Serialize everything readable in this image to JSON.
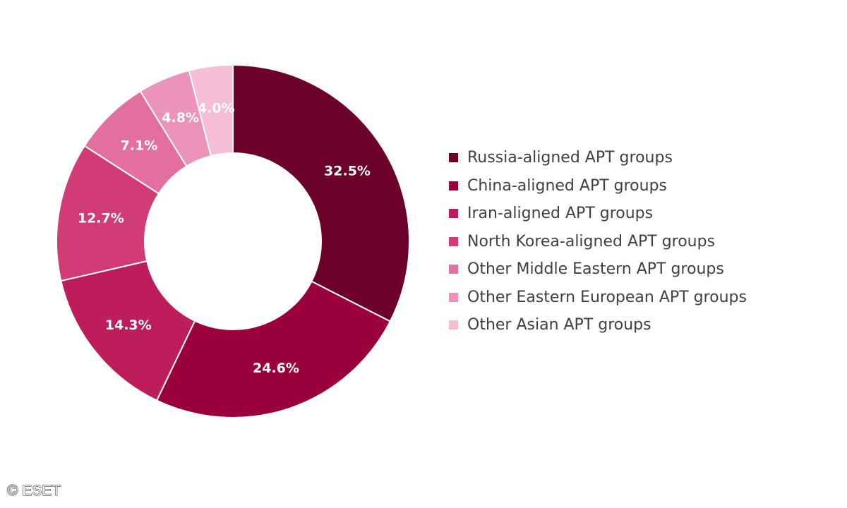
{
  "chart_data": {
    "type": "pie",
    "donut": true,
    "categories": [
      "Russia-aligned APT groups",
      "China-aligned APT groups",
      "Iran-aligned APT groups",
      "North Korea-aligned APT groups",
      "Other Middle Eastern APT groups",
      "Other Eastern European APT groups",
      "Other Asian APT groups"
    ],
    "values": [
      32.5,
      24.6,
      14.3,
      12.7,
      7.1,
      4.8,
      4.0
    ],
    "data_labels": [
      "32.5%",
      "24.6%",
      "14.3%",
      "12.7%",
      "7.1%",
      "4.8%",
      "4.0%"
    ],
    "colors": [
      "#6d0028",
      "#9a003c",
      "#bd1d5a",
      "#d13c76",
      "#e26fa0",
      "#ec93bb",
      "#f5bdd6"
    ],
    "legend_position": "right"
  },
  "footer": {
    "copyright": "© ESET"
  }
}
